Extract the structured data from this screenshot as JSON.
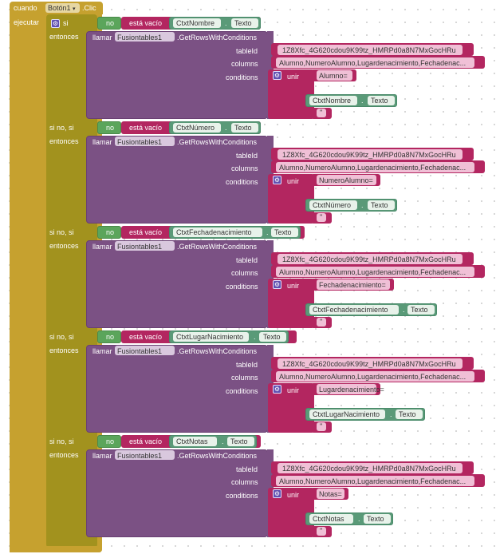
{
  "event": {
    "when": "cuando",
    "component": "Botón1",
    "event_name": ".Clic",
    "do": "ejecutar"
  },
  "labels": {
    "if": "si",
    "else_if": "si no, si",
    "then": "entonces",
    "not": "no",
    "is_empty": "está vacío",
    "call": "llamar",
    "method": ".GetRowsWithConditions",
    "tableId": "tableId",
    "columns": "columns",
    "conditions": "conditions",
    "join": "unir",
    "text_prop": "Texto",
    "dot": "."
  },
  "shared": {
    "component": "Fusiontables1",
    "table_id": "1Z8Xfc_4G620cdou9K99tz_HMRPd0a8N7MxGocHRu",
    "columns_value": "Alumno,NumeroAlumno,Lugardenacimiento,Fechadenac...",
    "empty_string": "\""
  },
  "branches": [
    {
      "label": "si",
      "textbox": "CtxtNombre",
      "condition_text": "Alumno="
    },
    {
      "label": "si no, si",
      "textbox": "CtxtNúmero",
      "condition_text": "NumeroAlumno="
    },
    {
      "label": "si no, si",
      "textbox": "CtxtFechadenacimiento",
      "condition_text": "Fechadenacimiento="
    },
    {
      "label": "si no, si",
      "textbox": "CtxtLugarNacimiento",
      "condition_text": "Lugardenacimiento="
    },
    {
      "label": "si no, si",
      "textbox": "CtxtNotas",
      "condition_text": "Notas="
    }
  ],
  "icons": {
    "gear": "gear-icon",
    "dropdown": "dropdown-arrow-icon"
  },
  "colors": {
    "control": "#c6a12f",
    "logic": "#5ba55b",
    "component_call": "#7b5184",
    "text": "#b32660",
    "property": "#5a9a78"
  }
}
